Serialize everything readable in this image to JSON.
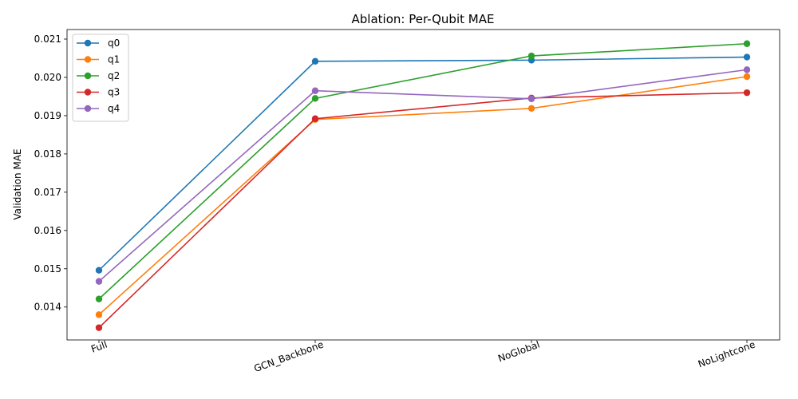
{
  "chart_data": {
    "type": "line",
    "title": "Ablation: Per-Qubit MAE",
    "xlabel": "",
    "ylabel": "Validation MAE",
    "categories": [
      "Full",
      "GCN_Backbone",
      "NoGlobal",
      "NoLightcone"
    ],
    "ylim": [
      0.01314,
      0.02125
    ],
    "yticks": [
      0.014,
      0.015,
      0.016,
      0.017,
      0.018,
      0.019,
      0.02,
      0.021
    ],
    "ytick_labels": [
      "0.014",
      "0.015",
      "0.016",
      "0.017",
      "0.018",
      "0.019",
      "0.020",
      "0.021"
    ],
    "grid": false,
    "legend_position": "top-left",
    "series": [
      {
        "name": "q0",
        "color": "#1f77b4",
        "values": [
          0.01496,
          0.02042,
          0.02045,
          0.02053
        ]
      },
      {
        "name": "q1",
        "color": "#ff7f0e",
        "values": [
          0.0138,
          0.0189,
          0.01919,
          0.02002
        ]
      },
      {
        "name": "q2",
        "color": "#2ca02c",
        "values": [
          0.01421,
          0.01945,
          0.02056,
          0.02088
        ]
      },
      {
        "name": "q3",
        "color": "#d62728",
        "values": [
          0.01346,
          0.01892,
          0.01946,
          0.0196
        ]
      },
      {
        "name": "q4",
        "color": "#9467bd",
        "values": [
          0.01467,
          0.01965,
          0.01944,
          0.0202
        ]
      }
    ]
  }
}
